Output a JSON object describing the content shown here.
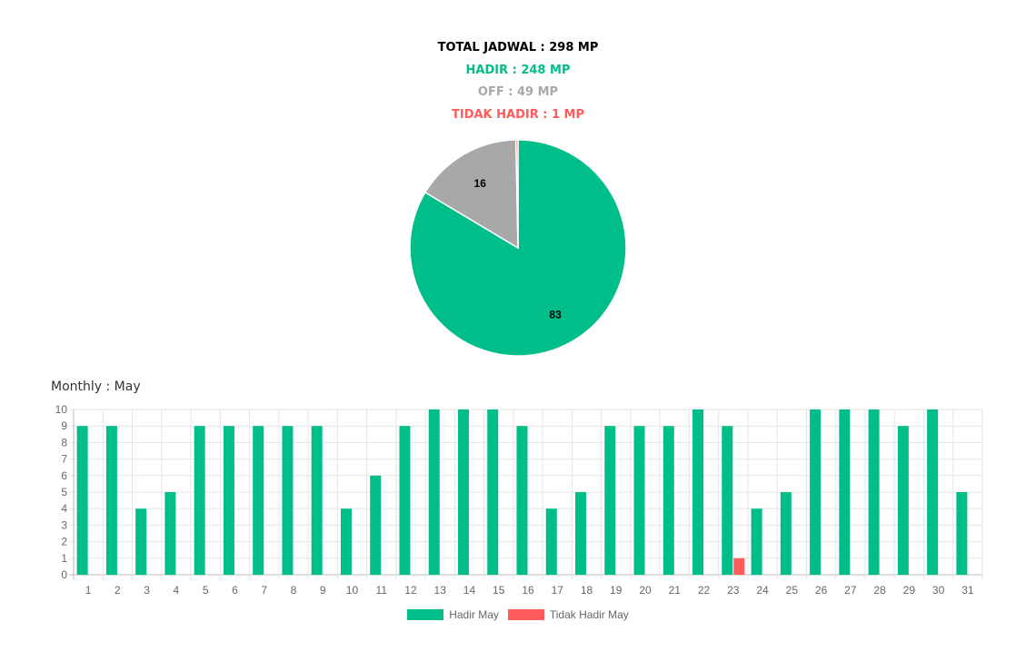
{
  "summary": {
    "total": "TOTAL JADWAL : 298 MP",
    "hadir": "HADIR : 248 MP",
    "off": "OFF : 49 MP",
    "tidak_hadir": "TIDAK HADIR : 1 MP"
  },
  "colors": {
    "hadir": "#00be8a",
    "off": "#a8a8a8",
    "tidak_hadir": "#ff5b5b",
    "total": "#000000"
  },
  "monthly_title": "Monthly : May",
  "chart_data": [
    {
      "type": "pie",
      "slices": [
        {
          "label": "83",
          "value": 83,
          "color": "#00be8a"
        },
        {
          "label": "16",
          "value": 16,
          "color": "#a8a8a8"
        },
        {
          "label": "",
          "value": 0.3,
          "color": "#ff5b5b"
        }
      ]
    },
    {
      "type": "bar",
      "categories": [
        "1",
        "2",
        "3",
        "4",
        "5",
        "6",
        "7",
        "8",
        "9",
        "10",
        "11",
        "12",
        "13",
        "14",
        "15",
        "16",
        "17",
        "18",
        "19",
        "20",
        "21",
        "22",
        "23",
        "24",
        "25",
        "26",
        "27",
        "28",
        "29",
        "30",
        "31"
      ],
      "ylim": [
        0,
        10
      ],
      "yticks": [
        "0",
        "1",
        "2",
        "3",
        "4",
        "5",
        "6",
        "7",
        "8",
        "9",
        "10"
      ],
      "grid": true,
      "legend_position": "bottom",
      "series": [
        {
          "name": "Hadir May",
          "color": "#00be8a",
          "values": [
            9,
            9,
            4,
            5,
            9,
            9,
            9,
            9,
            9,
            4,
            6,
            9,
            10,
            10,
            10,
            9,
            4,
            5,
            9,
            9,
            9,
            10,
            9,
            4,
            5,
            10,
            10,
            10,
            9,
            10,
            5
          ]
        },
        {
          "name": "Tidak Hadir May",
          "color": "#ff5b5b",
          "values": [
            0,
            0,
            0,
            0,
            0,
            0,
            0,
            0,
            0,
            0,
            0,
            0,
            0,
            0,
            0,
            0,
            0,
            0,
            0,
            0,
            0,
            0,
            1,
            0,
            0,
            0,
            0,
            0,
            0,
            0,
            0
          ]
        }
      ]
    }
  ]
}
